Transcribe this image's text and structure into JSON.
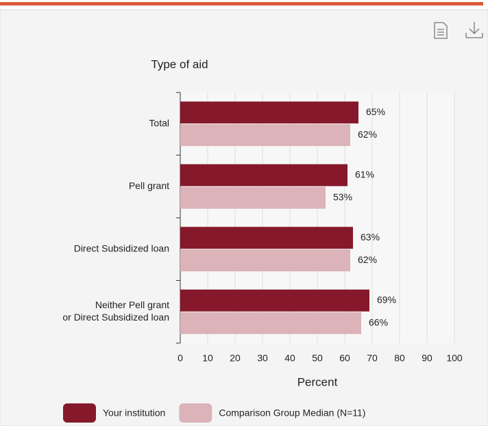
{
  "chart_data": {
    "type": "hbar",
    "title": "Type of aid",
    "x_label": "Percent",
    "categories": [
      [
        "Total"
      ],
      [
        "Pell grant"
      ],
      [
        "Direct Subsidized loan"
      ],
      [
        "Neither Pell grant",
        "or Direct Subsidized loan"
      ]
    ],
    "series": [
      {
        "name": "Your institution",
        "color": "#85192b",
        "values": [
          65,
          61,
          63,
          69
        ],
        "value_labels": [
          "65%",
          "61%",
          "63%",
          "69%"
        ]
      },
      {
        "name": "Comparison Group Median (N=11)",
        "color": "#dbb3b9",
        "values": [
          62,
          53,
          62,
          66
        ],
        "value_labels": [
          "62%",
          "53%",
          "62%",
          "66%"
        ]
      }
    ],
    "xlim": [
      0,
      100
    ],
    "xticks": [
      0,
      10,
      20,
      30,
      40,
      50,
      60,
      70,
      80,
      90,
      100
    ],
    "grid": true
  }
}
